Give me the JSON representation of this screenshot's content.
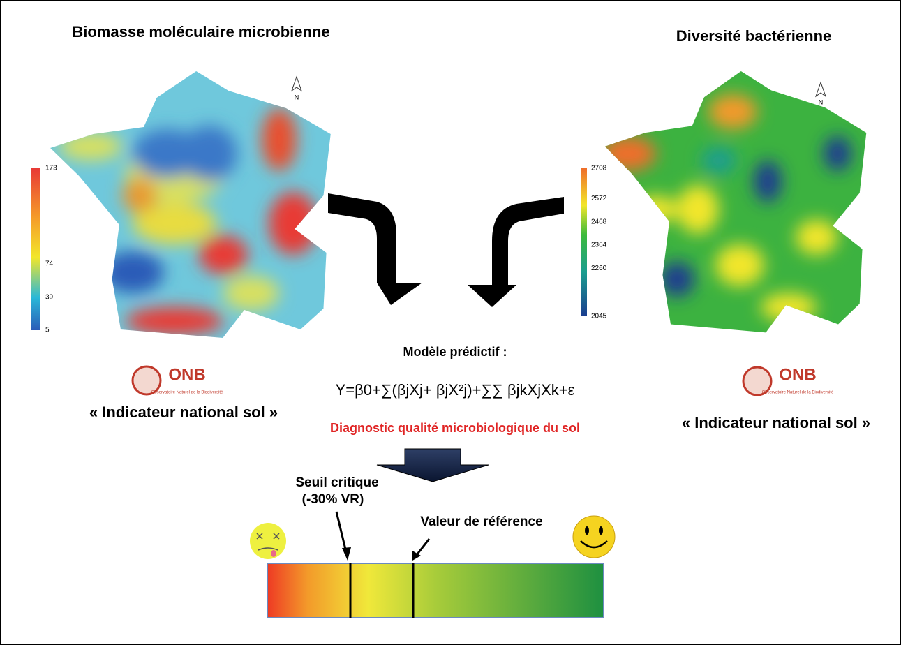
{
  "left": {
    "title": "Biomasse moléculaire microbienne",
    "north": "N",
    "scale_ticks": [
      173,
      74,
      39,
      5
    ],
    "logo": {
      "name": "ONB",
      "subtitle": "Observatoire Naturel de la Biodiversité"
    },
    "caption": "« Indicateur national sol »"
  },
  "right": {
    "title": "Diversité bactérienne",
    "north": "N",
    "scale_ticks": [
      2708,
      2572,
      2468,
      2364,
      2260,
      2045
    ],
    "logo": {
      "name": "ONB",
      "subtitle": "Observatoire Naturel de la Biodiversité"
    },
    "caption": "« Indicateur national sol »"
  },
  "model": {
    "label": "Modèle prédictif :",
    "formula": "Y=β0+∑(βjXj+ βjX²j)+∑∑ βjkXjXk+ε",
    "diagnostic": "Diagnostic qualité microbiologique du sol"
  },
  "scale": {
    "threshold": [
      "Seuil critique",
      "(-30% VR)"
    ],
    "reference": "Valeur de référence"
  }
}
